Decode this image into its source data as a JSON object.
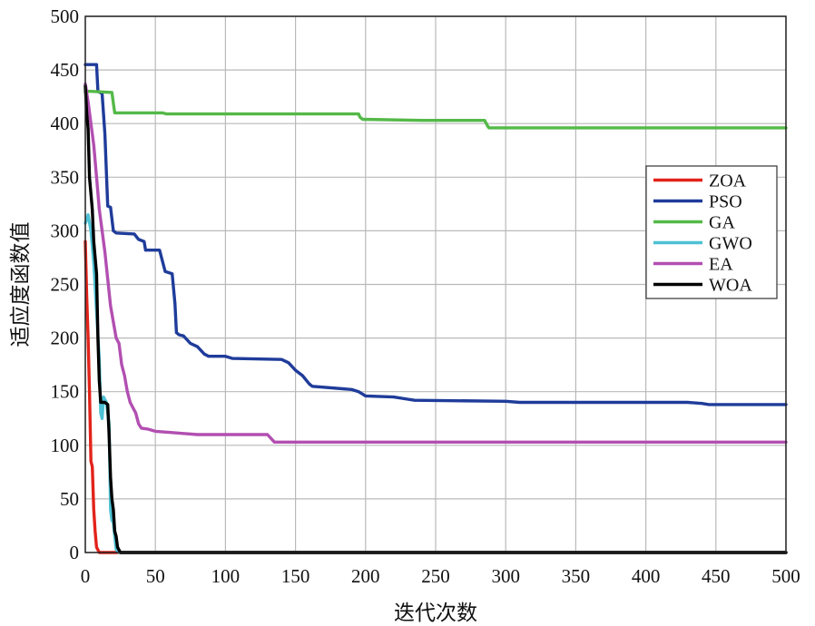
{
  "chart_data": {
    "type": "line",
    "title": "",
    "xlabel": "迭代次数",
    "ylabel": "适应度函数值",
    "xlim": [
      0,
      500
    ],
    "ylim": [
      0,
      500
    ],
    "xticks": [
      0,
      50,
      100,
      150,
      200,
      250,
      300,
      350,
      400,
      450,
      500
    ],
    "yticks": [
      0,
      50,
      100,
      150,
      200,
      250,
      300,
      350,
      400,
      450,
      500
    ],
    "grid": true,
    "legend_position": "right",
    "series": [
      {
        "name": "ZOA",
        "color": "#e2231a",
        "points": [
          [
            0,
            290
          ],
          [
            1,
            240
          ],
          [
            2,
            200
          ],
          [
            3,
            150
          ],
          [
            4,
            85
          ],
          [
            5,
            80
          ],
          [
            6,
            40
          ],
          [
            7,
            20
          ],
          [
            8,
            5
          ],
          [
            10,
            0
          ],
          [
            500,
            0
          ]
        ]
      },
      {
        "name": "PSO",
        "color": "#1f3c9a",
        "points": [
          [
            0,
            455
          ],
          [
            8,
            455
          ],
          [
            9,
            430
          ],
          [
            12,
            428
          ],
          [
            14,
            390
          ],
          [
            16,
            323
          ],
          [
            18,
            322
          ],
          [
            20,
            300
          ],
          [
            22,
            298
          ],
          [
            35,
            297
          ],
          [
            38,
            292
          ],
          [
            42,
            290
          ],
          [
            43,
            282
          ],
          [
            53,
            282
          ],
          [
            55,
            272
          ],
          [
            57,
            262
          ],
          [
            62,
            260
          ],
          [
            64,
            232
          ],
          [
            65,
            205
          ],
          [
            67,
            203
          ],
          [
            70,
            202
          ],
          [
            75,
            195
          ],
          [
            80,
            192
          ],
          [
            85,
            185
          ],
          [
            88,
            183
          ],
          [
            100,
            183
          ],
          [
            105,
            181
          ],
          [
            140,
            180
          ],
          [
            145,
            177
          ],
          [
            150,
            170
          ],
          [
            155,
            165
          ],
          [
            160,
            157
          ],
          [
            162,
            155
          ],
          [
            190,
            152
          ],
          [
            195,
            150
          ],
          [
            200,
            146
          ],
          [
            220,
            145
          ],
          [
            230,
            143
          ],
          [
            235,
            142
          ],
          [
            300,
            141
          ],
          [
            310,
            140
          ],
          [
            430,
            140
          ],
          [
            440,
            139
          ],
          [
            445,
            138
          ],
          [
            500,
            138
          ]
        ]
      },
      {
        "name": "GA",
        "color": "#54b948",
        "points": [
          [
            0,
            430
          ],
          [
            4,
            430
          ],
          [
            19,
            429
          ],
          [
            20,
            419
          ],
          [
            21,
            410
          ],
          [
            55,
            410
          ],
          [
            58,
            409
          ],
          [
            195,
            409
          ],
          [
            196,
            406
          ],
          [
            198,
            404
          ],
          [
            240,
            403
          ],
          [
            285,
            403
          ],
          [
            287,
            398
          ],
          [
            288,
            396
          ],
          [
            500,
            396
          ]
        ]
      },
      {
        "name": "GWO",
        "color": "#4ec1d4",
        "points": [
          [
            0,
            307
          ],
          [
            2,
            315
          ],
          [
            4,
            300
          ],
          [
            6,
            270
          ],
          [
            8,
            225
          ],
          [
            10,
            180
          ],
          [
            11,
            130
          ],
          [
            12,
            125
          ],
          [
            13,
            145
          ],
          [
            15,
            140
          ],
          [
            17,
            120
          ],
          [
            18,
            40
          ],
          [
            19,
            30
          ],
          [
            20,
            28
          ],
          [
            21,
            15
          ],
          [
            22,
            3
          ],
          [
            24,
            0
          ],
          [
            500,
            0
          ]
        ]
      },
      {
        "name": "EA",
        "color": "#b24fb1",
        "points": [
          [
            0,
            437
          ],
          [
            2,
            420
          ],
          [
            4,
            400
          ],
          [
            6,
            380
          ],
          [
            8,
            350
          ],
          [
            10,
            320
          ],
          [
            12,
            300
          ],
          [
            14,
            280
          ],
          [
            16,
            255
          ],
          [
            18,
            230
          ],
          [
            20,
            215
          ],
          [
            22,
            200
          ],
          [
            24,
            195
          ],
          [
            26,
            175
          ],
          [
            28,
            165
          ],
          [
            30,
            150
          ],
          [
            32,
            140
          ],
          [
            34,
            135
          ],
          [
            36,
            130
          ],
          [
            38,
            120
          ],
          [
            40,
            116
          ],
          [
            45,
            115
          ],
          [
            50,
            113
          ],
          [
            60,
            112
          ],
          [
            70,
            111
          ],
          [
            80,
            110
          ],
          [
            130,
            110
          ],
          [
            135,
            103
          ],
          [
            500,
            103
          ]
        ]
      },
      {
        "name": "WOA",
        "color": "#000000",
        "points": [
          [
            0,
            435
          ],
          [
            1,
            410
          ],
          [
            2,
            395
          ],
          [
            3,
            350
          ],
          [
            5,
            320
          ],
          [
            6,
            290
          ],
          [
            8,
            260
          ],
          [
            9,
            200
          ],
          [
            10,
            160
          ],
          [
            11,
            140
          ],
          [
            14,
            140
          ],
          [
            16,
            138
          ],
          [
            17,
            110
          ],
          [
            18,
            70
          ],
          [
            19,
            50
          ],
          [
            20,
            40
          ],
          [
            21,
            20
          ],
          [
            22,
            15
          ],
          [
            23,
            5
          ],
          [
            25,
            0
          ],
          [
            500,
            0
          ]
        ]
      }
    ]
  }
}
